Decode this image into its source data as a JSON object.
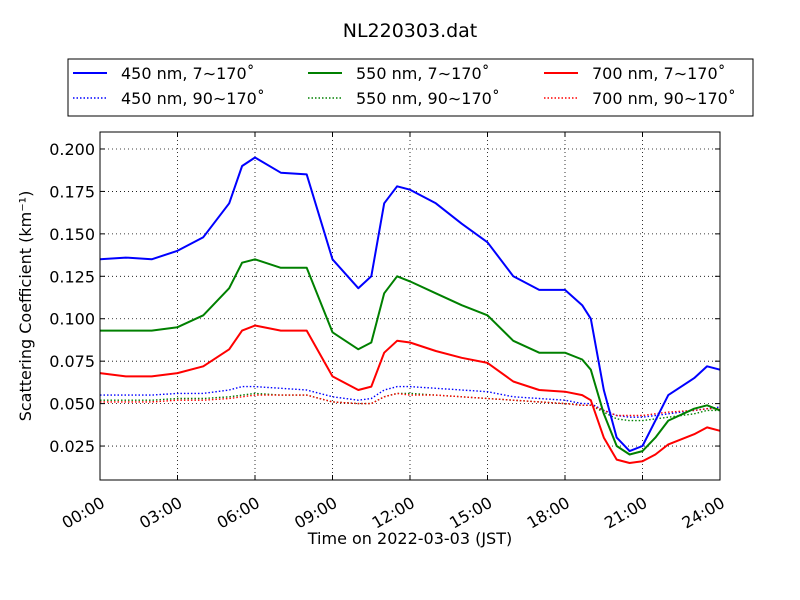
{
  "chart_data": {
    "type": "line",
    "title": "NL220303.dat",
    "xlabel": "Time on 2022-03-03 (JST)",
    "ylabel": "Scattering Coefficient (km⁻¹)",
    "xlim": [
      "00:00",
      "24:00"
    ],
    "ylim": [
      0.005,
      0.21
    ],
    "x_ticks": [
      "00:00",
      "03:00",
      "06:00",
      "09:00",
      "12:00",
      "15:00",
      "18:00",
      "21:00",
      "24:00"
    ],
    "y_ticks": [
      "0.025",
      "0.050",
      "0.075",
      "0.100",
      "0.125",
      "0.150",
      "0.175",
      "0.200"
    ],
    "grid": true,
    "legend_position": "top",
    "x": [
      "00:00",
      "01:00",
      "02:00",
      "03:00",
      "04:00",
      "05:00",
      "05:30",
      "06:00",
      "07:00",
      "08:00",
      "09:00",
      "10:00",
      "10:30",
      "11:00",
      "11:30",
      "12:00",
      "13:00",
      "14:00",
      "15:00",
      "16:00",
      "17:00",
      "18:00",
      "18:40",
      "19:00",
      "19:30",
      "20:00",
      "20:30",
      "21:00",
      "21:30",
      "22:00",
      "23:00",
      "23:30",
      "24:00"
    ],
    "series": [
      {
        "name": "450 nm, 7∼170˚",
        "color": "#0000ff",
        "dash": "solid",
        "values": [
          0.135,
          0.136,
          0.135,
          0.14,
          0.148,
          0.168,
          0.19,
          0.195,
          0.186,
          0.185,
          0.135,
          0.118,
          0.125,
          0.168,
          0.178,
          0.176,
          0.168,
          0.156,
          0.145,
          0.125,
          0.117,
          0.117,
          0.108,
          0.1,
          0.058,
          0.03,
          0.022,
          0.025,
          0.04,
          0.055,
          0.065,
          0.072,
          0.07
        ]
      },
      {
        "name": "450 nm, 90∼170˚",
        "color": "#0000ff",
        "dash": "dotted",
        "values": [
          0.055,
          0.055,
          0.055,
          0.056,
          0.056,
          0.058,
          0.06,
          0.06,
          0.059,
          0.058,
          0.054,
          0.052,
          0.053,
          0.058,
          0.06,
          0.06,
          0.059,
          0.058,
          0.057,
          0.054,
          0.053,
          0.052,
          0.05,
          0.05,
          0.046,
          0.043,
          0.042,
          0.042,
          0.043,
          0.044,
          0.046,
          0.047,
          0.048
        ]
      },
      {
        "name": "550 nm, 7∼170˚",
        "color": "#008000",
        "dash": "solid",
        "values": [
          0.093,
          0.093,
          0.093,
          0.095,
          0.102,
          0.118,
          0.133,
          0.135,
          0.13,
          0.13,
          0.092,
          0.082,
          0.086,
          0.115,
          0.125,
          0.122,
          0.115,
          0.108,
          0.102,
          0.087,
          0.08,
          0.08,
          0.076,
          0.07,
          0.044,
          0.025,
          0.02,
          0.022,
          0.03,
          0.04,
          0.047,
          0.049,
          0.046
        ]
      },
      {
        "name": "550 nm, 90∼170˚",
        "color": "#008000",
        "dash": "dotted",
        "values": [
          0.052,
          0.052,
          0.052,
          0.053,
          0.053,
          0.054,
          0.055,
          0.056,
          0.055,
          0.055,
          0.051,
          0.05,
          0.05,
          0.054,
          0.056,
          0.056,
          0.055,
          0.054,
          0.053,
          0.052,
          0.051,
          0.05,
          0.049,
          0.049,
          0.045,
          0.041,
          0.04,
          0.04,
          0.041,
          0.042,
          0.044,
          0.046,
          0.046
        ]
      },
      {
        "name": "700 nm, 7∼170˚",
        "color": "#ff0000",
        "dash": "solid",
        "values": [
          0.068,
          0.066,
          0.066,
          0.068,
          0.072,
          0.082,
          0.093,
          0.096,
          0.093,
          0.093,
          0.066,
          0.058,
          0.06,
          0.08,
          0.087,
          0.086,
          0.081,
          0.077,
          0.074,
          0.063,
          0.058,
          0.057,
          0.055,
          0.052,
          0.03,
          0.017,
          0.015,
          0.016,
          0.02,
          0.026,
          0.032,
          0.036,
          0.034
        ]
      },
      {
        "name": "700 nm, 90∼170˚",
        "color": "#ff0000",
        "dash": "dotted",
        "values": [
          0.051,
          0.051,
          0.051,
          0.052,
          0.052,
          0.053,
          0.054,
          0.055,
          0.055,
          0.055,
          0.051,
          0.05,
          0.05,
          0.054,
          0.056,
          0.055,
          0.055,
          0.054,
          0.053,
          0.052,
          0.051,
          0.05,
          0.049,
          0.049,
          0.046,
          0.043,
          0.043,
          0.043,
          0.044,
          0.045,
          0.046,
          0.047,
          0.047
        ]
      }
    ]
  }
}
